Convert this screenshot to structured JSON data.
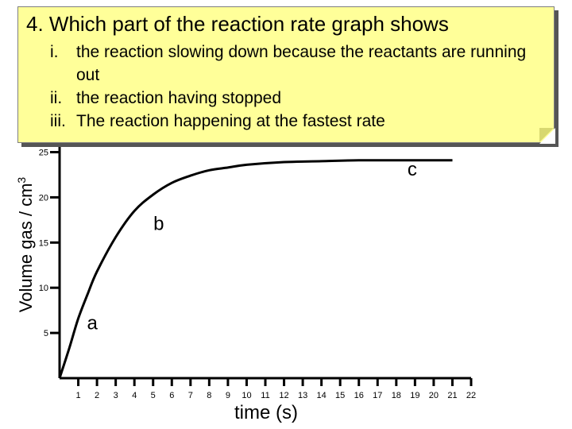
{
  "question": {
    "title": "4. Which part of the reaction rate graph shows",
    "items": [
      {
        "num": "i.",
        "text": "the reaction slowing down because the reactants are running out"
      },
      {
        "num": "ii.",
        "text": "the reaction having stopped"
      },
      {
        "num": "iii.",
        "text": "The reaction happening at the fastest rate"
      }
    ]
  },
  "chart_data": {
    "type": "line",
    "title": "",
    "xlabel": "time (s)",
    "ylabel": "Volume gas / cm",
    "ylabel_superscript": "3",
    "x_ticks": [
      "1",
      "2",
      "3",
      "4",
      "5",
      "6",
      "7",
      "8",
      "9",
      "10",
      "11",
      "12",
      "13",
      "14",
      "15",
      "16",
      "17",
      "18",
      "19",
      "20",
      "21",
      "22"
    ],
    "y_ticks": [
      "5",
      "10",
      "15",
      "20",
      "25"
    ],
    "xlim": [
      0,
      22
    ],
    "ylim": [
      0,
      29
    ],
    "grid": false,
    "series": [
      {
        "x": [
          0,
          0.5,
          1,
          1.5,
          2,
          3,
          4,
          5,
          6,
          7,
          8,
          9,
          10,
          12,
          14,
          16,
          18,
          20,
          21
        ],
        "y": [
          0,
          3.2,
          6.6,
          9.3,
          11.8,
          15.6,
          18.5,
          20.3,
          21.6,
          22.4,
          23.0,
          23.3,
          23.6,
          23.9,
          24.0,
          24.1,
          24.1,
          24.1,
          24.1
        ]
      }
    ],
    "annotations": [
      {
        "text": "a",
        "x": 1.75,
        "y": 5.4
      },
      {
        "text": "b",
        "x": 5.3,
        "y": 16.4
      },
      {
        "text": "c",
        "x": 18.85,
        "y": 22.4
      }
    ],
    "colors": {
      "line": "#000000",
      "note_bg": "#ffff99"
    }
  }
}
